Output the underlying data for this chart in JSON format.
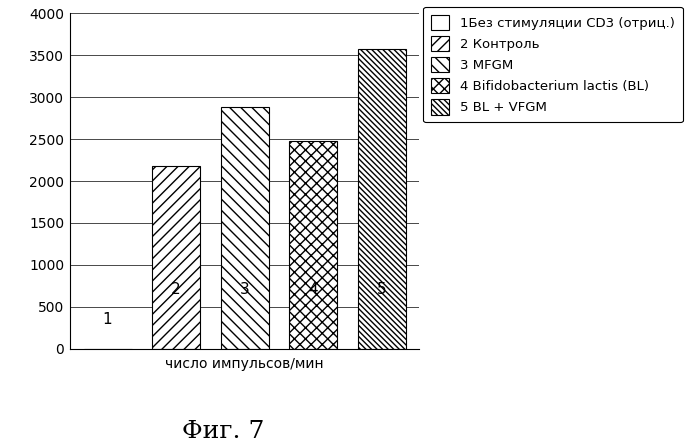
{
  "categories": [
    "1",
    "2",
    "3",
    "4",
    "5"
  ],
  "values": [
    0,
    2175,
    2880,
    2480,
    3580
  ],
  "xlabel": "число импульсов/мин",
  "caption": "Фиг. 7",
  "ylim": [
    0,
    4000
  ],
  "yticks": [
    0,
    500,
    1000,
    1500,
    2000,
    2500,
    3000,
    3500,
    4000
  ],
  "legend_labels": [
    "1Без стимуляции CD3 (отриц.)",
    "2 Контроль",
    "3 MFGM",
    "4 Bifidobacterium lactis (BL)",
    "5 BL + VFGM"
  ],
  "bar_color": "#ffffff",
  "bar_edgecolor": "#000000",
  "background_color": "#ffffff",
  "label_fontsize": 11,
  "caption_fontsize": 18,
  "legend_fontsize": 9.5,
  "xlabel_fontsize": 10,
  "ytick_fontsize": 10
}
